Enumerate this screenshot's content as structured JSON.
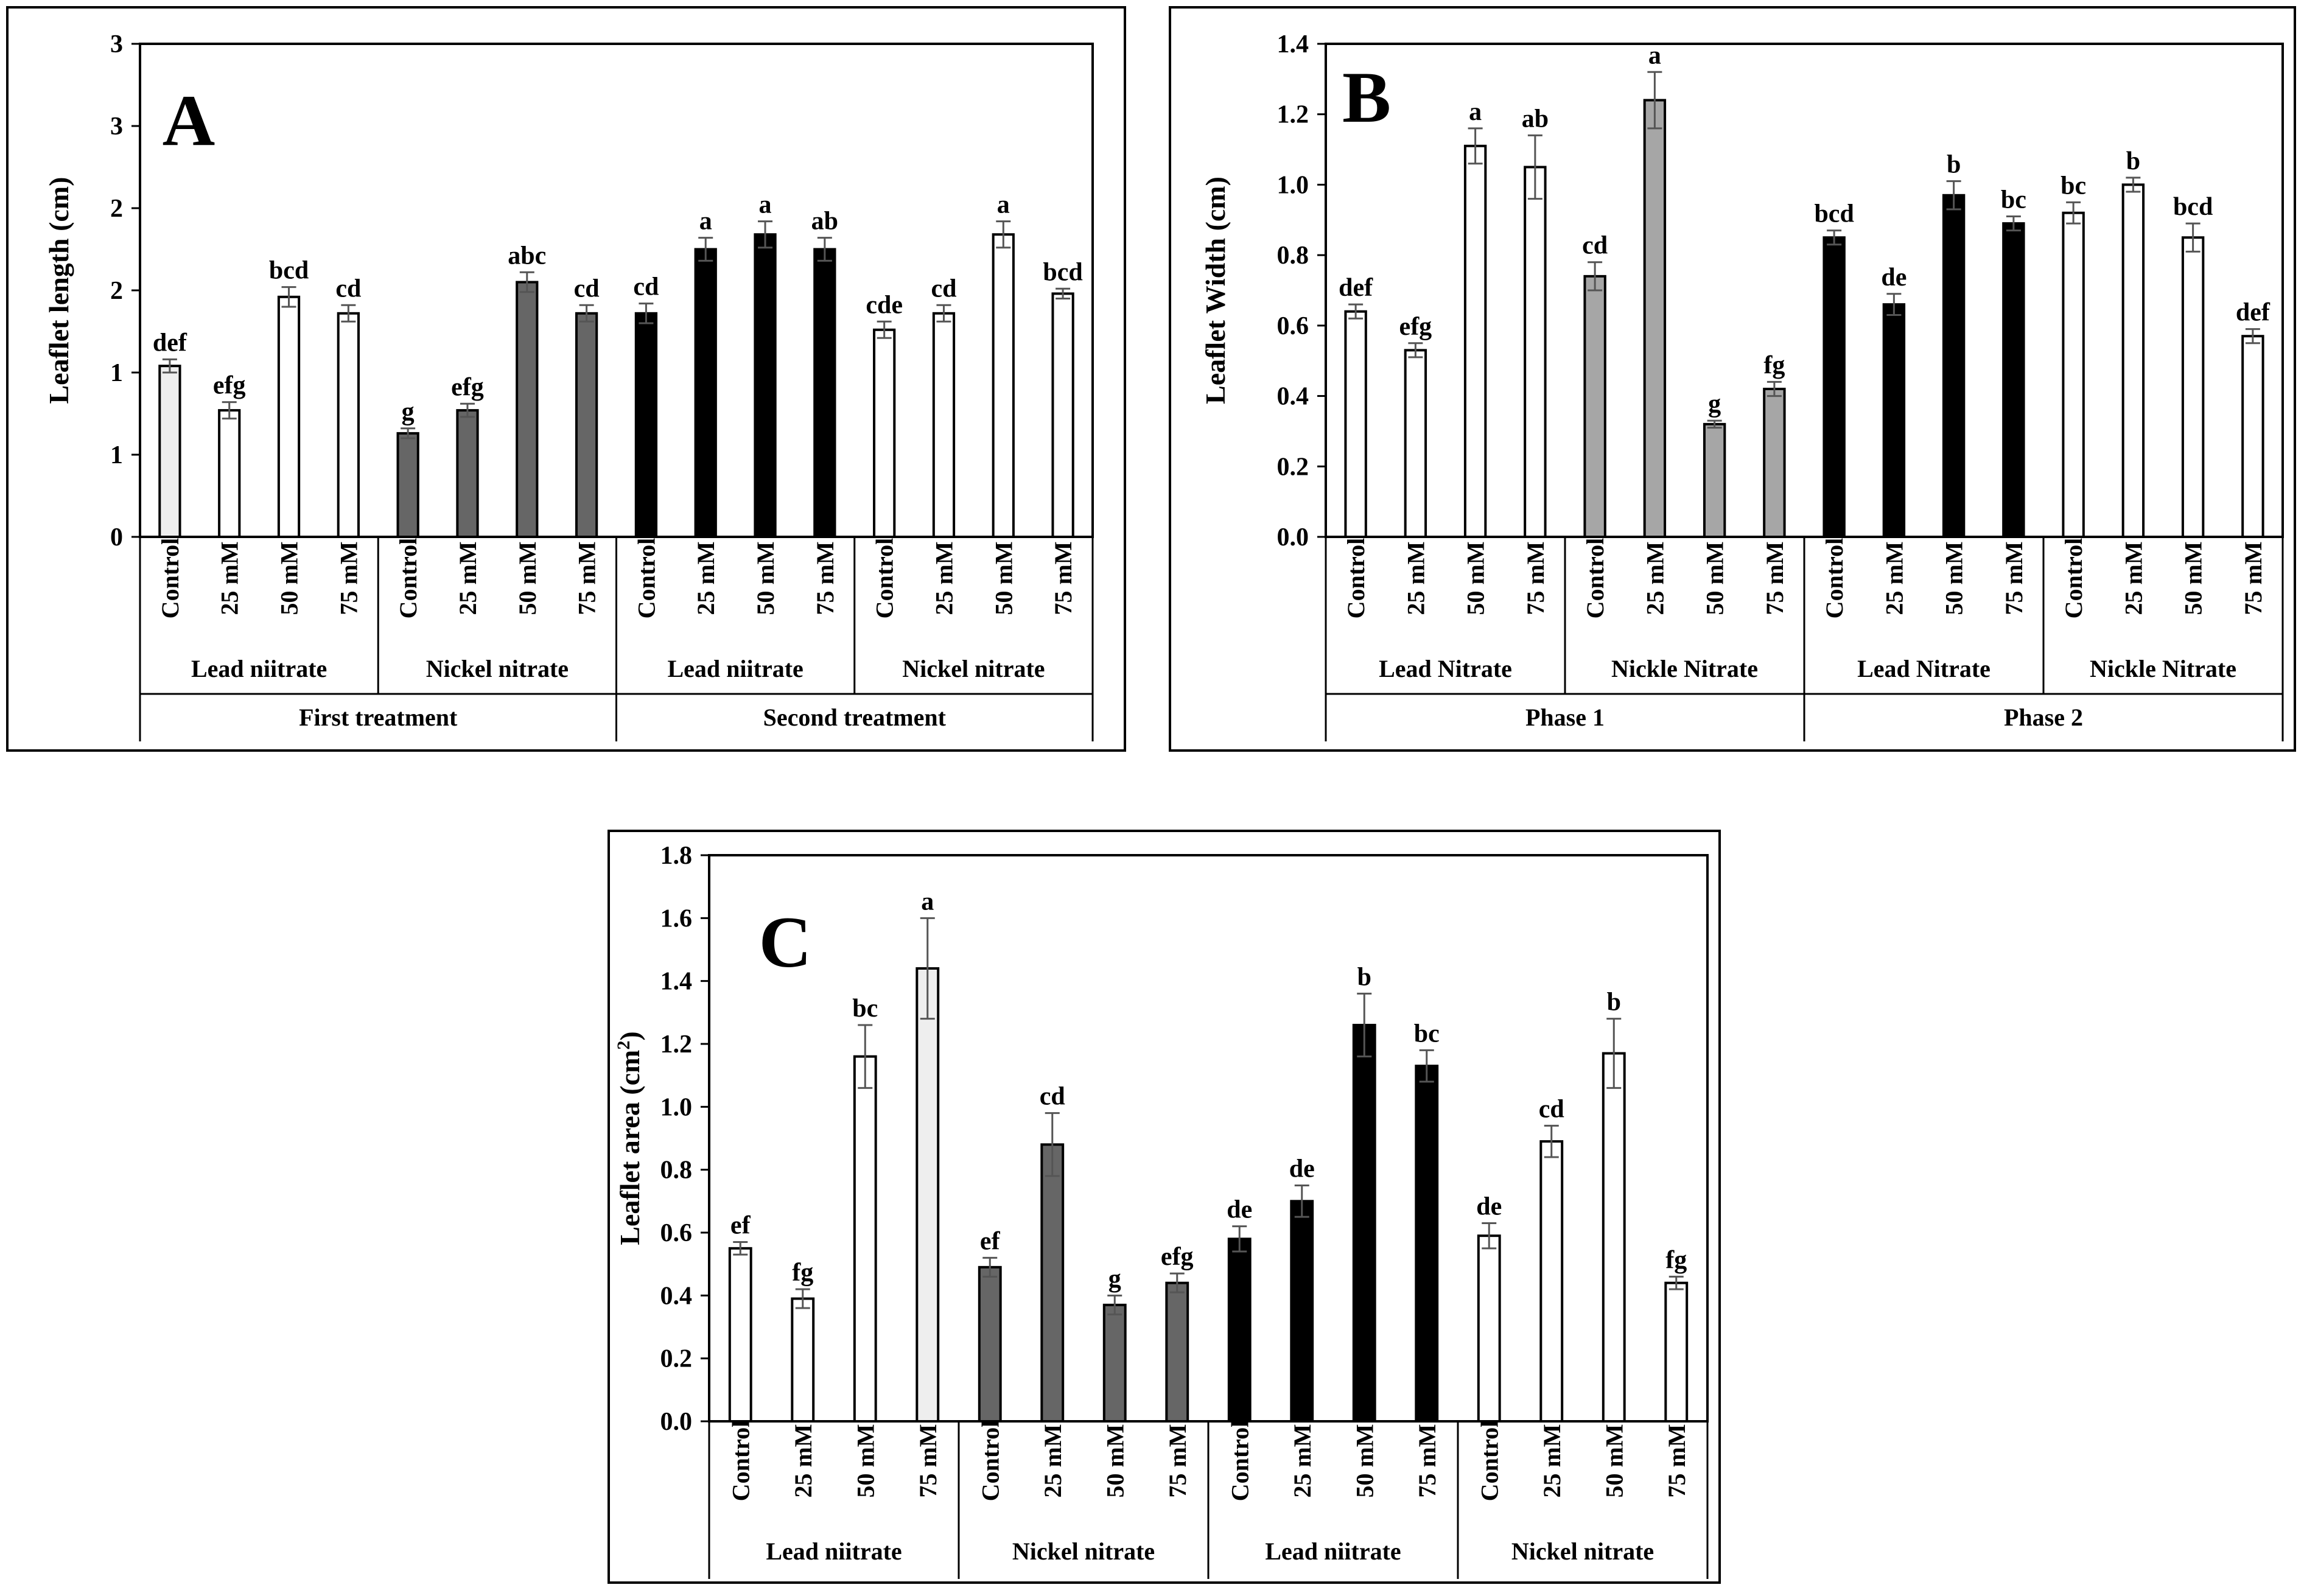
{
  "chart_data": [
    {
      "type": "bar",
      "panel": "A",
      "ylabel": "Leaflet length (cm)",
      "ylim": [
        0,
        3
      ],
      "yticks": [
        0,
        0.5,
        1,
        1.5,
        2,
        2.5,
        3
      ],
      "ytick_labels": [
        "0",
        "1",
        "1",
        "2",
        "2",
        "3",
        "3"
      ],
      "categories": [
        "Control",
        "25 mM",
        "50 mM",
        "75 mM",
        "Control",
        "25 mM",
        "50 mM",
        "75 mM",
        "Control",
        "25 mM",
        "50 mM",
        "75 mM",
        "Control",
        "25 mM",
        "50 mM",
        "75 mM"
      ],
      "values": [
        1.04,
        0.77,
        1.46,
        1.36,
        0.63,
        0.77,
        1.55,
        1.36,
        1.36,
        1.75,
        1.84,
        1.75,
        1.26,
        1.36,
        1.84,
        1.48
      ],
      "errors": [
        0.04,
        0.05,
        0.06,
        0.05,
        0.03,
        0.04,
        0.06,
        0.05,
        0.06,
        0.07,
        0.08,
        0.07,
        0.05,
        0.05,
        0.08,
        0.03
      ],
      "significance": [
        "def",
        "efg",
        "bcd",
        "cd",
        "g",
        "efg",
        "abc",
        "cd",
        "cd",
        "a",
        "a",
        "ab",
        "cde",
        "cd",
        "a",
        "bcd"
      ],
      "colors": [
        "#eeeeee",
        "#ffffff",
        "#ffffff",
        "#ffffff",
        "#666666",
        "#666666",
        "#666666",
        "#666666",
        "#000000",
        "#000000",
        "#000000",
        "#000000",
        "#ffffff",
        "#ffffff",
        "#ffffff",
        "#ffffff"
      ],
      "groups": [
        "Lead niitrate",
        "Nickel nitrate",
        "Lead niitrate",
        "Nickel nitrate"
      ],
      "supergroups": [
        "First treatment",
        "Second treatment"
      ]
    },
    {
      "type": "bar",
      "panel": "B",
      "ylabel": "Leaflet Width (cm)",
      "ylim": [
        0,
        1.4
      ],
      "yticks": [
        0,
        0.2,
        0.4,
        0.6,
        0.8,
        1.0,
        1.2,
        1.4
      ],
      "ytick_labels": [
        "0.0",
        "0.2",
        "0.4",
        "0.6",
        "0.8",
        "1.0",
        "1.2",
        "1.4"
      ],
      "categories": [
        "Control",
        "25 mM",
        "50 mM",
        "75 mM",
        "Control",
        "25 mM",
        "50 mM",
        "75 mM",
        "Control",
        "25 mM",
        "50 mM",
        "75 mM",
        "Control",
        "25 mM",
        "50 mM",
        "75 mM"
      ],
      "values": [
        0.64,
        0.53,
        1.11,
        1.05,
        0.74,
        1.24,
        0.32,
        0.42,
        0.85,
        0.66,
        0.97,
        0.89,
        0.92,
        1.0,
        0.85,
        0.57
      ],
      "errors": [
        0.02,
        0.02,
        0.05,
        0.09,
        0.04,
        0.08,
        0.01,
        0.02,
        0.02,
        0.03,
        0.04,
        0.02,
        0.03,
        0.02,
        0.04,
        0.02
      ],
      "significance": [
        "def",
        "efg",
        "a",
        "ab",
        "cd",
        "a",
        "g",
        "fg",
        "bcd",
        "de",
        "b",
        "bc",
        "bc",
        "b",
        "bcd",
        "def"
      ],
      "colors": [
        "#ffffff",
        "#ffffff",
        "#ffffff",
        "#ffffff",
        "#a6a6a6",
        "#a6a6a6",
        "#a6a6a6",
        "#a6a6a6",
        "#000000",
        "#000000",
        "#000000",
        "#000000",
        "#ffffff",
        "#ffffff",
        "#ffffff",
        "#ffffff"
      ],
      "groups": [
        "Lead Nitrate",
        "Nickle Nitrate",
        "Lead Nitrate",
        "Nickle Nitrate"
      ],
      "supergroups": [
        "Phase 1",
        "Phase 2"
      ]
    },
    {
      "type": "bar",
      "panel": "C",
      "ylabel": "Leaflet area (cm",
      "ylabel_sup": "2",
      "ylabel_close": ")",
      "ylim": [
        0,
        1.8
      ],
      "yticks": [
        0,
        0.2,
        0.4,
        0.6,
        0.8,
        1.0,
        1.2,
        1.4,
        1.6,
        1.8
      ],
      "ytick_labels": [
        "0.0",
        "0.2",
        "0.4",
        "0.6",
        "0.8",
        "1.0",
        "1.2",
        "1.4",
        "1.6",
        "1.8"
      ],
      "categories": [
        "Control",
        "25 mM",
        "50 mM",
        "75 mM",
        "Control",
        "25 mM",
        "50 mM",
        "75 mM",
        "Control",
        "25 mM",
        "50 mM",
        "75 mM",
        "Control",
        "25 mM",
        "50 mM",
        "75 mM"
      ],
      "values": [
        0.55,
        0.39,
        1.16,
        1.44,
        0.49,
        0.88,
        0.37,
        0.44,
        0.58,
        0.7,
        1.26,
        1.13,
        0.59,
        0.89,
        1.17,
        0.44
      ],
      "errors": [
        0.02,
        0.03,
        0.1,
        0.16,
        0.03,
        0.1,
        0.03,
        0.03,
        0.04,
        0.05,
        0.1,
        0.05,
        0.04,
        0.05,
        0.11,
        0.02
      ],
      "significance": [
        "ef",
        "fg",
        "bc",
        "a",
        "ef",
        "cd",
        "g",
        "efg",
        "de",
        "de",
        "b",
        "bc",
        "de",
        "cd",
        "b",
        "fg"
      ],
      "colors": [
        "#ffffff",
        "#ffffff",
        "#ffffff",
        "#eeeeee",
        "#666666",
        "#666666",
        "#666666",
        "#666666",
        "#000000",
        "#000000",
        "#000000",
        "#000000",
        "#ffffff",
        "#ffffff",
        "#ffffff",
        "#ffffff"
      ],
      "groups": [
        "Lead niitrate",
        "Nickel nitrate",
        "Lead niitrate",
        "Nickel nitrate"
      ],
      "supergroups": []
    }
  ]
}
